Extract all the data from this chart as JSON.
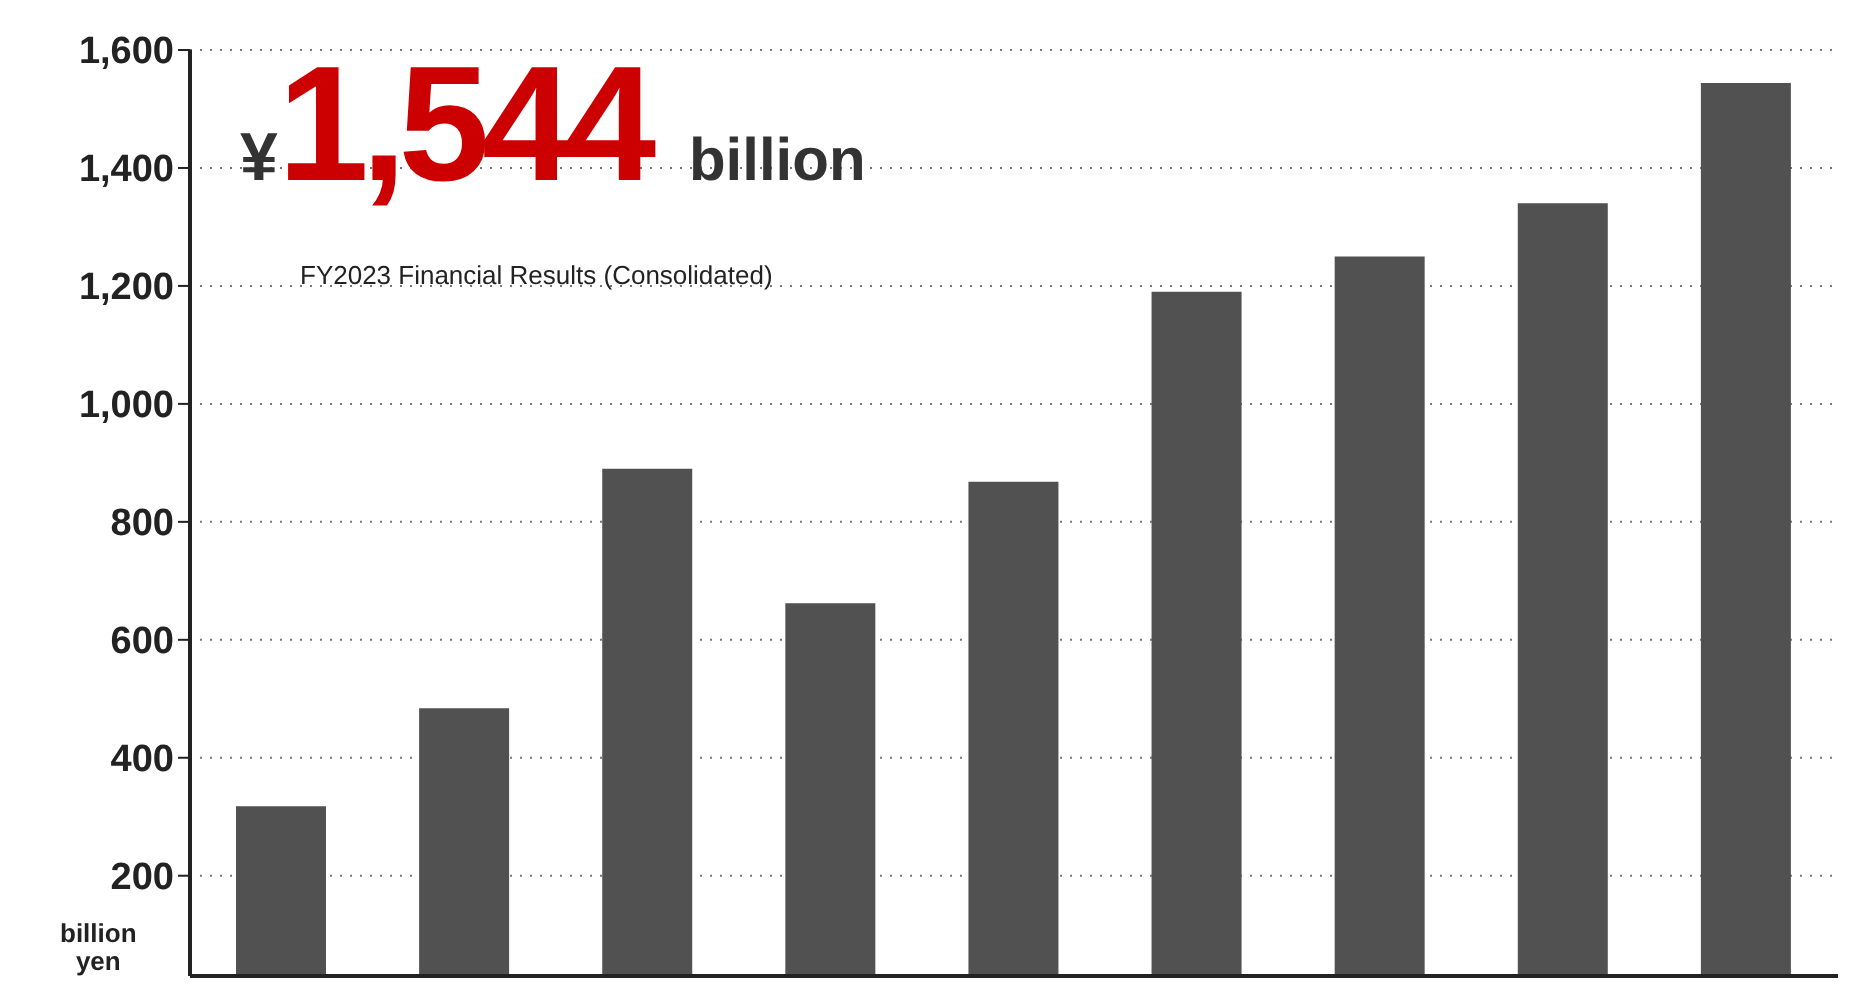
{
  "chart_data": {
    "type": "bar",
    "categories": [
      null,
      null,
      null,
      null,
      null,
      null,
      null,
      null,
      null
    ],
    "values": [
      318,
      484,
      890,
      662,
      868,
      1190,
      1250,
      1340,
      1544
    ],
    "color": "#515151",
    "ylabel": "billion yen",
    "ylim": [
      30,
      1600
    ],
    "yticks": [
      200,
      400,
      600,
      800,
      {
        "value": 1000,
        "label": "1,000"
      },
      {
        "value": 1200,
        "label": "1,200"
      },
      {
        "value": 1400,
        "label": "1,400"
      },
      {
        "value": 1600,
        "label": "1,600"
      }
    ],
    "grid": "y",
    "tick_labels": "y",
    "annotations": [
      "¥1,544 billion",
      "FY2023 Financial Results (Consolidated)"
    ]
  }
}
